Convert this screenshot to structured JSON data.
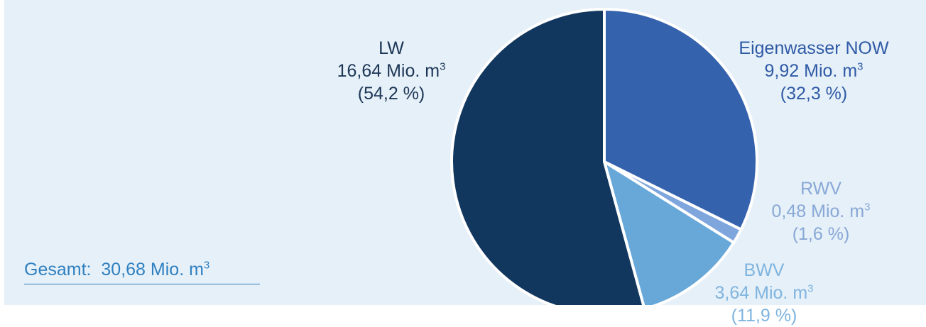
{
  "chart_data": {
    "type": "pie",
    "unit": "Mio. m",
    "unit_exponent": "3",
    "total": {
      "prefix": "Gesamt:",
      "value": "30,68"
    },
    "slices": [
      {
        "name": "Eigenwasser NOW",
        "value": 9.92,
        "value_label": "9,92",
        "percent_label": "(32,3 %)",
        "color": "#3562ad",
        "label_color": "#2f5aa6"
      },
      {
        "name": "RWV",
        "value": 0.48,
        "value_label": "0,48",
        "percent_label": "(1,6 %)",
        "color": "#7fa6dc",
        "label_color": "#88a8d6"
      },
      {
        "name": "BWV",
        "value": 3.64,
        "value_label": "3,64",
        "percent_label": "(11,9 %)",
        "color": "#68a8d9",
        "label_color": "#7fb4df"
      },
      {
        "name": "LW",
        "value": 16.64,
        "value_label": "16,64",
        "percent_label": "(54,2 %)",
        "color": "#12375f",
        "label_color": "#1c3656"
      }
    ],
    "start_angle": "top",
    "direction": "clockwise",
    "total_color": "#2f80c0"
  }
}
